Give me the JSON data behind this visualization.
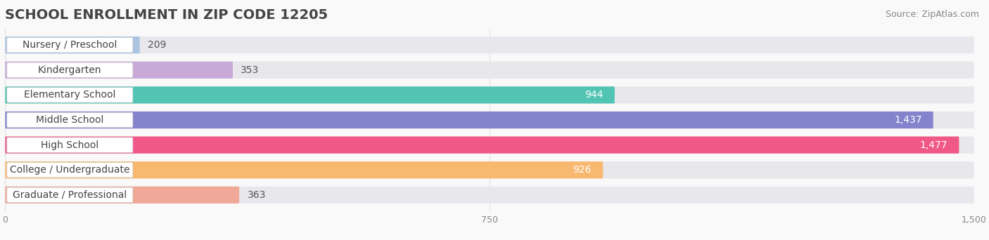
{
  "title": "SCHOOL ENROLLMENT IN ZIP CODE 12205",
  "source": "Source: ZipAtlas.com",
  "categories": [
    "Nursery / Preschool",
    "Kindergarten",
    "Elementary School",
    "Middle School",
    "High School",
    "College / Undergraduate",
    "Graduate / Professional"
  ],
  "values": [
    209,
    353,
    944,
    1437,
    1477,
    926,
    363
  ],
  "bar_colors": [
    "#aac4e2",
    "#c8aad8",
    "#52c4b4",
    "#8484cc",
    "#f05888",
    "#f8b870",
    "#f0a898"
  ],
  "bar_bg_color": "#e8e8ec",
  "label_colors": [
    "#444444",
    "#444444",
    "#ffffff",
    "#ffffff",
    "#ffffff",
    "#ffffff",
    "#444444"
  ],
  "value_inside": [
    false,
    false,
    true,
    true,
    true,
    true,
    false
  ],
  "xlim": [
    0,
    1500
  ],
  "xticks": [
    0,
    750,
    1500
  ],
  "background_color": "#f9f9f9",
  "bar_height": 0.68,
  "title_fontsize": 14,
  "source_fontsize": 9,
  "label_fontsize": 10,
  "value_fontsize": 10
}
